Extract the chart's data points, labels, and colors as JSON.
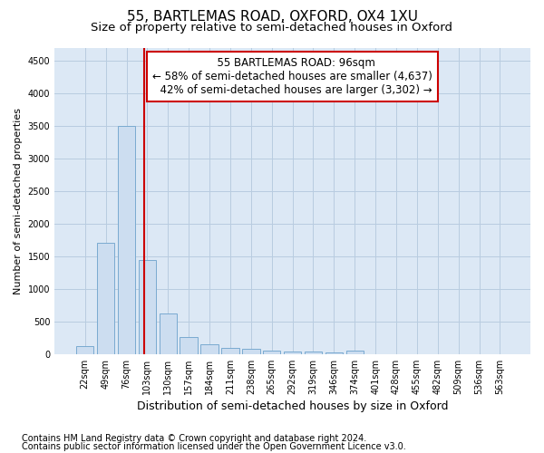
{
  "title1": "55, BARTLEMAS ROAD, OXFORD, OX4 1XU",
  "title2": "Size of property relative to semi-detached houses in Oxford",
  "xlabel": "Distribution of semi-detached houses by size in Oxford",
  "ylabel": "Number of semi-detached properties",
  "categories": [
    "22sqm",
    "49sqm",
    "76sqm",
    "103sqm",
    "130sqm",
    "157sqm",
    "184sqm",
    "211sqm",
    "238sqm",
    "265sqm",
    "292sqm",
    "319sqm",
    "346sqm",
    "374sqm",
    "401sqm",
    "428sqm",
    "455sqm",
    "482sqm",
    "509sqm",
    "536sqm",
    "563sqm"
  ],
  "values": [
    120,
    1700,
    3500,
    1440,
    620,
    265,
    155,
    90,
    75,
    55,
    45,
    35,
    30,
    50,
    0,
    0,
    0,
    0,
    0,
    0,
    0
  ],
  "bar_color": "#ccddf0",
  "bar_edge_color": "#7aaad0",
  "vline_x": 2.85,
  "property_size": "96sqm",
  "property_name": "55 BARTLEMAS ROAD",
  "pct_smaller": 58,
  "n_smaller": "4,637",
  "pct_larger": 42,
  "n_larger": "3,302",
  "annotation_box_facecolor": "#ffffff",
  "annotation_box_edgecolor": "#cc0000",
  "vline_color": "#cc0000",
  "ylim": [
    0,
    4700
  ],
  "yticks": [
    0,
    500,
    1000,
    1500,
    2000,
    2500,
    3000,
    3500,
    4000,
    4500
  ],
  "bg_color": "#ffffff",
  "plot_bg_color": "#dce8f5",
  "grid_color": "#b8cce0",
  "title1_fontsize": 11,
  "title2_fontsize": 9.5,
  "ylabel_fontsize": 8,
  "xlabel_fontsize": 9,
  "tick_fontsize": 7,
  "annotation_fontsize": 8.5,
  "footnote_fontsize": 7,
  "footnote1": "Contains HM Land Registry data © Crown copyright and database right 2024.",
  "footnote2": "Contains public sector information licensed under the Open Government Licence v3.0."
}
